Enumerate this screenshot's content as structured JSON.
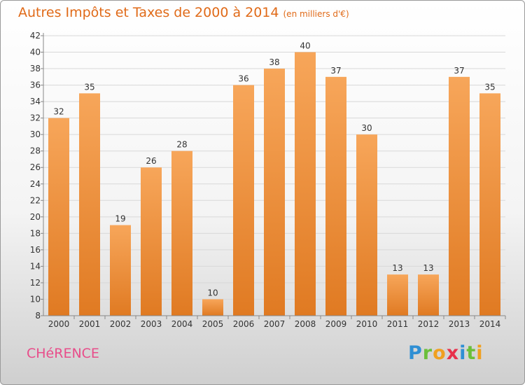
{
  "title": "Autres Impôts et Taxes de 2000 à 2014",
  "unit": "(en milliers d'€)",
  "place": "CHéRENCE",
  "logo": {
    "letters": [
      "P",
      "r",
      "o",
      "x",
      "i",
      "t",
      "i"
    ],
    "colors": [
      "#2f8fd4",
      "#6bbf3a",
      "#f0a020",
      "#e8304a",
      "#2f8fd4",
      "#6bbf3a",
      "#f0a020"
    ]
  },
  "chart_data": {
    "type": "bar",
    "title": "Autres Impôts et Taxes de 2000 à 2014",
    "unit": "(en milliers d'€)",
    "categories": [
      "2000",
      "2001",
      "2002",
      "2003",
      "2004",
      "2005",
      "2006",
      "2007",
      "2008",
      "2009",
      "2010",
      "2011",
      "2012",
      "2013",
      "2014"
    ],
    "values": [
      32,
      35,
      19,
      26,
      28,
      10,
      36,
      38,
      40,
      37,
      30,
      13,
      13,
      37,
      35
    ],
    "ylim": [
      8,
      42
    ],
    "yticks": [
      8,
      10,
      12,
      14,
      16,
      18,
      20,
      22,
      24,
      26,
      28,
      30,
      32,
      34,
      36,
      38,
      40,
      42
    ],
    "grid": true,
    "colors": {
      "bar_light": "#f7a65a",
      "bar_dark": "#e07a22",
      "text": "#333333",
      "title": "#e06a18",
      "grid": "#d8d8d8"
    }
  }
}
